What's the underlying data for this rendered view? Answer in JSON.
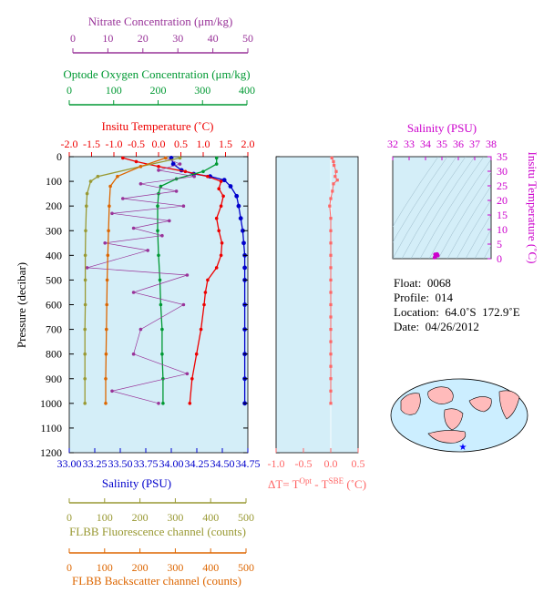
{
  "colors": {
    "panel_bg": "#d4eef8",
    "nitrate": "#993399",
    "oxygen": "#009933",
    "temperature": "#ee0000",
    "salinity": "#0000cc",
    "fluorescence": "#999933",
    "backscatter": "#dd6600",
    "dt": "#ff6666",
    "ts": "#cc00cc"
  },
  "axes": {
    "nitrate": {
      "title": "Nitrate Concentration (μm/kg)",
      "ticks": [
        "0",
        "10",
        "20",
        "30",
        "40",
        "50"
      ]
    },
    "oxygen": {
      "title": "Optode Oxygen Concentration (μm/kg)",
      "ticks": [
        "0",
        "100",
        "200",
        "300",
        "400"
      ]
    },
    "temperature": {
      "title": "Insitu Temperature (˚C)",
      "ticks": [
        "-2.0",
        "-1.5",
        "-1.0",
        "-0.5",
        "0.0",
        "0.5",
        "1.0",
        "1.5",
        "2.0"
      ]
    },
    "pressure": {
      "title": "Pressure (decibar)",
      "ticks": [
        "0",
        "100",
        "200",
        "300",
        "400",
        "500",
        "600",
        "700",
        "800",
        "900",
        "1000",
        "1100",
        "1200"
      ]
    },
    "salinity": {
      "title": "Salinity (PSU)",
      "ticks": [
        "33.00",
        "33.25",
        "33.50",
        "33.75",
        "34.00",
        "34.25",
        "34.50",
        "34.75"
      ]
    },
    "dt": {
      "title_prefix": "ΔT= T",
      "sup1": "Opt",
      "mid": " - T",
      "sup2": "SBE",
      "suffix": " (˚C)",
      "ticks": [
        "-1.0",
        "-0.5",
        "0.0",
        "0.5"
      ]
    },
    "ts_salinity": {
      "title": "Salinity (PSU)",
      "ticks": [
        "32",
        "33",
        "34",
        "35",
        "36",
        "37",
        "38"
      ]
    },
    "ts_temperature": {
      "title": "Insitu Temperature (˚C)",
      "ticks": [
        "0",
        "5",
        "10",
        "15",
        "20",
        "25",
        "30",
        "35"
      ]
    },
    "fluorescence": {
      "title": "FLBB Fluorescence channel (counts)",
      "ticks": [
        "0",
        "100",
        "200",
        "300",
        "400",
        "500"
      ]
    },
    "backscatter": {
      "title": "FLBB Backscatter channel (counts)",
      "ticks": [
        "0",
        "100",
        "200",
        "300",
        "400",
        "500"
      ]
    }
  },
  "info": {
    "float": "Float:  0068",
    "profile": "Profile:  014",
    "location": "Location:  64.0˚S  172.9˚E",
    "date": "Date:  04/26/2012"
  },
  "chart_data": [
    {
      "type": "line",
      "panel": "profiles",
      "xlabel": "Salinity (PSU)",
      "ylabel": "Pressure (decibar)",
      "ylim": [
        1200,
        0
      ],
      "series": [
        {
          "name": "Salinity (PSU)",
          "xlim": [
            33.0,
            34.75
          ],
          "points": [
            [
              34.0,
              5
            ],
            [
              34.02,
              30
            ],
            [
              34.1,
              55
            ],
            [
              34.22,
              70
            ],
            [
              34.38,
              80
            ],
            [
              34.52,
              95
            ],
            [
              34.58,
              120
            ],
            [
              34.64,
              160
            ],
            [
              34.66,
              200
            ],
            [
              34.68,
              250
            ],
            [
              34.7,
              300
            ],
            [
              34.71,
              350
            ],
            [
              34.72,
              400
            ],
            [
              34.72,
              450
            ],
            [
              34.72,
              500
            ],
            [
              34.72,
              600
            ],
            [
              34.72,
              700
            ],
            [
              34.72,
              800
            ],
            [
              34.72,
              900
            ],
            [
              34.72,
              1000
            ]
          ]
        },
        {
          "name": "Insitu Temperature (˚C)",
          "xlim": [
            -2.0,
            2.0
          ],
          "points": [
            [
              -0.8,
              5
            ],
            [
              -0.5,
              20
            ],
            [
              0.0,
              40
            ],
            [
              0.6,
              60
            ],
            [
              1.1,
              80
            ],
            [
              1.4,
              100
            ],
            [
              1.35,
              130
            ],
            [
              1.45,
              160
            ],
            [
              1.4,
              200
            ],
            [
              1.3,
              250
            ],
            [
              1.35,
              300
            ],
            [
              1.42,
              350
            ],
            [
              1.4,
              400
            ],
            [
              1.3,
              450
            ],
            [
              1.1,
              500
            ],
            [
              1.05,
              550
            ],
            [
              1.02,
              600
            ],
            [
              0.95,
              700
            ],
            [
              0.85,
              800
            ],
            [
              0.75,
              900
            ],
            [
              0.7,
              1000
            ]
          ]
        },
        {
          "name": "Optode Oxygen Concentration (μm/kg)",
          "xlim": [
            0,
            400
          ],
          "points": [
            [
              330,
              5
            ],
            [
              330,
              30
            ],
            [
              300,
              60
            ],
            [
              240,
              90
            ],
            [
              205,
              120
            ],
            [
              200,
              150
            ],
            [
              198,
              200
            ],
            [
              198,
              300
            ],
            [
              200,
              400
            ],
            [
              203,
              500
            ],
            [
              205,
              600
            ],
            [
              208,
              700
            ],
            [
              208,
              800
            ],
            [
              210,
              900
            ],
            [
              210,
              1000
            ]
          ]
        },
        {
          "name": "Nitrate Concentration (μm/kg)",
          "xlim": [
            0,
            50
          ],
          "points": [
            [
              27,
              5
            ],
            [
              31,
              30
            ],
            [
              25,
              55
            ],
            [
              35,
              80
            ],
            [
              20,
              110
            ],
            [
              30,
              140
            ],
            [
              15,
              170
            ],
            [
              32,
              200
            ],
            [
              12,
              230
            ],
            [
              28,
              260
            ],
            [
              18,
              290
            ],
            [
              26,
              320
            ],
            [
              10,
              350
            ],
            [
              22,
              380
            ],
            [
              5,
              450
            ],
            [
              33,
              480
            ],
            [
              18,
              550
            ],
            [
              32,
              600
            ],
            [
              20,
              700
            ],
            [
              18,
              800
            ],
            [
              33,
              880
            ],
            [
              12,
              950
            ],
            [
              25,
              1000
            ]
          ]
        },
        {
          "name": "FLBB Fluorescence channel (counts)",
          "xlim": [
            0,
            500
          ],
          "points": [
            [
              310,
              5
            ],
            [
              200,
              40
            ],
            [
              80,
              80
            ],
            [
              60,
              100
            ],
            [
              50,
              150
            ],
            [
              48,
              200
            ],
            [
              46,
              300
            ],
            [
              45,
              400
            ],
            [
              45,
              500
            ],
            [
              45,
              600
            ],
            [
              44,
              700
            ],
            [
              44,
              800
            ],
            [
              44,
              900
            ],
            [
              44,
              1000
            ]
          ]
        },
        {
          "name": "FLBB Backscatter channel (counts)",
          "xlim": [
            0,
            500
          ],
          "points": [
            [
              270,
              5
            ],
            [
              200,
              40
            ],
            [
              135,
              80
            ],
            [
              115,
              120
            ],
            [
              112,
              200
            ],
            [
              110,
              300
            ],
            [
              108,
              400
            ],
            [
              106,
              500
            ],
            [
              105,
              600
            ],
            [
              104,
              700
            ],
            [
              103,
              800
            ],
            [
              102,
              900
            ],
            [
              102,
              1000
            ]
          ]
        }
      ]
    },
    {
      "type": "line",
      "panel": "dt",
      "xlabel": "ΔT= T Opt - T SBE (˚C)",
      "xlim": [
        -1.0,
        0.5
      ],
      "ylim": [
        1200,
        0
      ],
      "points": [
        [
          0.02,
          5
        ],
        [
          0.05,
          20
        ],
        [
          0.06,
          35
        ],
        [
          0.1,
          60
        ],
        [
          0.08,
          80
        ],
        [
          0.12,
          95
        ],
        [
          0.05,
          110
        ],
        [
          0.03,
          140
        ],
        [
          0.0,
          170
        ],
        [
          -0.02,
          200
        ],
        [
          0.0,
          250
        ],
        [
          0.0,
          300
        ],
        [
          0.0,
          350
        ],
        [
          0.0,
          400
        ],
        [
          0.0,
          450
        ],
        [
          0.0,
          500
        ],
        [
          0.0,
          550
        ],
        [
          0.0,
          600
        ],
        [
          0.0,
          650
        ],
        [
          0.0,
          700
        ],
        [
          0.0,
          750
        ],
        [
          0.0,
          800
        ],
        [
          0.0,
          850
        ],
        [
          0.0,
          900
        ],
        [
          0.0,
          950
        ],
        [
          0.0,
          1000
        ]
      ]
    },
    {
      "type": "scatter",
      "panel": "ts",
      "xlabel": "Salinity (PSU)",
      "ylabel": "Insitu Temperature (˚C)",
      "xlim": [
        32,
        38
      ],
      "ylim": [
        0,
        35
      ],
      "points": [
        [
          34.6,
          0.7
        ],
        [
          34.65,
          1.0
        ],
        [
          34.7,
          1.2
        ],
        [
          34.72,
          1.4
        ],
        [
          34.68,
          1.3
        ],
        [
          34.62,
          0.9
        ],
        [
          34.58,
          1.5
        ],
        [
          34.7,
          1.6
        ],
        [
          34.55,
          0.4
        ],
        [
          34.75,
          1.1
        ]
      ]
    }
  ]
}
